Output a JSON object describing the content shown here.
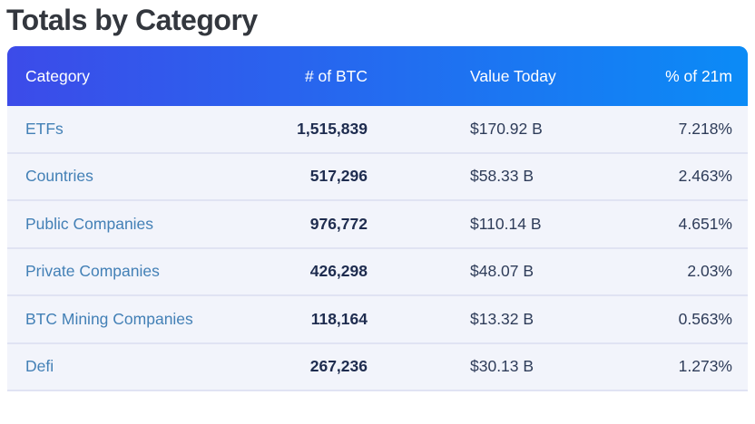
{
  "page": {
    "title": "Totals by Category"
  },
  "table": {
    "columns": [
      {
        "label": "Category"
      },
      {
        "label": "# of BTC"
      },
      {
        "label": "Value Today"
      },
      {
        "label": "% of 21m"
      }
    ],
    "rows": [
      {
        "category": "ETFs",
        "btc": "1,515,839",
        "value": "$170.92 B",
        "pct": "7.218%"
      },
      {
        "category": "Countries",
        "btc": "517,296",
        "value": "$58.33 B",
        "pct": "2.463%"
      },
      {
        "category": "Public Companies",
        "btc": "976,772",
        "value": "$110.14 B",
        "pct": "4.651%"
      },
      {
        "category": "Private Companies",
        "btc": "426,298",
        "value": "$48.07 B",
        "pct": "2.03%"
      },
      {
        "category": "BTC Mining Companies",
        "btc": "118,164",
        "value": "$13.32 B",
        "pct": "0.563%"
      },
      {
        "category": "Defi",
        "btc": "267,236",
        "value": "$30.13 B",
        "pct": "1.273%"
      }
    ]
  },
  "colors": {
    "header_gradient_start": "#3c4be9",
    "header_gradient_end": "#0b8bf6",
    "header_text": "#ffffff",
    "row_background": "#f2f4fb",
    "divider": "#e0e3f3",
    "category_link": "#4380b6",
    "btc_number": "#1e2c4f",
    "value_text": "#2e3c59",
    "title_text": "#33373e"
  }
}
